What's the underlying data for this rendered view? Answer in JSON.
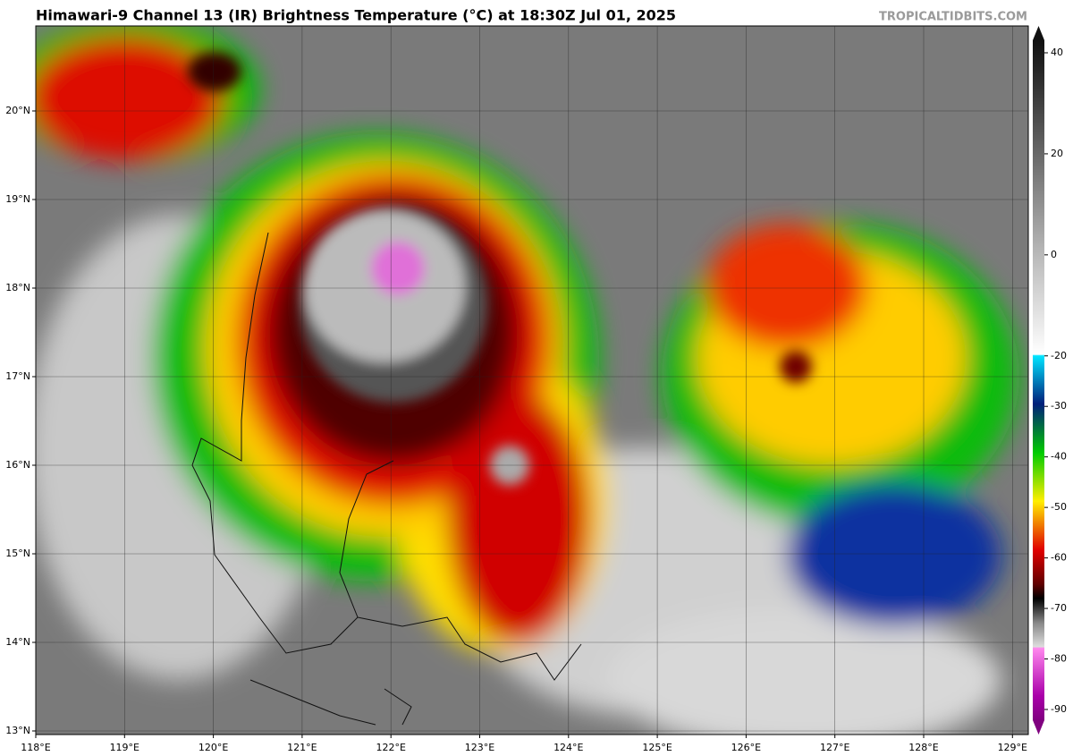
{
  "title": "Himawari-9 Channel 13 (IR) Brightness Temperature (°C) at 18:30Z Jul 01, 2025",
  "watermark": "TROPICALTIDBITS.COM",
  "map": {
    "lon_ticks": [
      {
        "value": 118,
        "label": "118°E"
      },
      {
        "value": 119,
        "label": "119°E"
      },
      {
        "value": 120,
        "label": "120°E"
      },
      {
        "value": 121,
        "label": "121°E"
      },
      {
        "value": 122,
        "label": "122°E"
      },
      {
        "value": 123,
        "label": "123°E"
      },
      {
        "value": 124,
        "label": "124°E"
      },
      {
        "value": 125,
        "label": "125°E"
      },
      {
        "value": 126,
        "label": "126°E"
      },
      {
        "value": 127,
        "label": "127°E"
      },
      {
        "value": 128,
        "label": "128°E"
      },
      {
        "value": 129,
        "label": "129°E"
      }
    ],
    "lat_ticks": [
      {
        "value": 20,
        "label": "20°N"
      },
      {
        "value": 19,
        "label": "19°N"
      },
      {
        "value": 18,
        "label": "18°N"
      },
      {
        "value": 17,
        "label": "17°N"
      },
      {
        "value": 16,
        "label": "16°N"
      },
      {
        "value": 15,
        "label": "15°N"
      },
      {
        "value": 14,
        "label": "14°N"
      },
      {
        "value": 13,
        "label": "13°N"
      }
    ]
  },
  "colorbar": {
    "ticks": [
      40,
      20,
      0,
      -20,
      -30,
      -40,
      -50,
      -60,
      -70,
      -80,
      -90
    ]
  }
}
